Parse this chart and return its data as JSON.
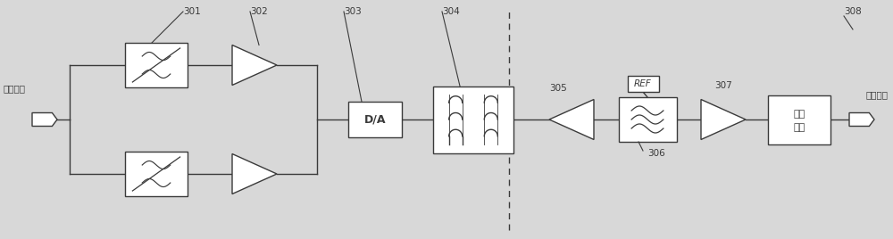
{
  "bg_color": "#d8d8d8",
  "line_color": "#3a3a3a",
  "box_color": "#ffffff",
  "fig_width": 10.0,
  "fig_height": 2.68,
  "dpi": 100,
  "labels": {
    "send": "发送数据",
    "recv": "接收数据",
    "da": "D/A",
    "sample_l1": "抽样",
    "sample_l2": "判决",
    "ref": "REF",
    "n301": "301",
    "n302": "302",
    "n303": "303",
    "n304": "304",
    "n305": "305",
    "n306": "306",
    "n307": "307",
    "n308": "308"
  },
  "xlim": [
    0,
    100
  ],
  "ylim": [
    0,
    26.8
  ],
  "y_top": 19.5,
  "y_mid": 13.4,
  "y_bot": 7.3
}
